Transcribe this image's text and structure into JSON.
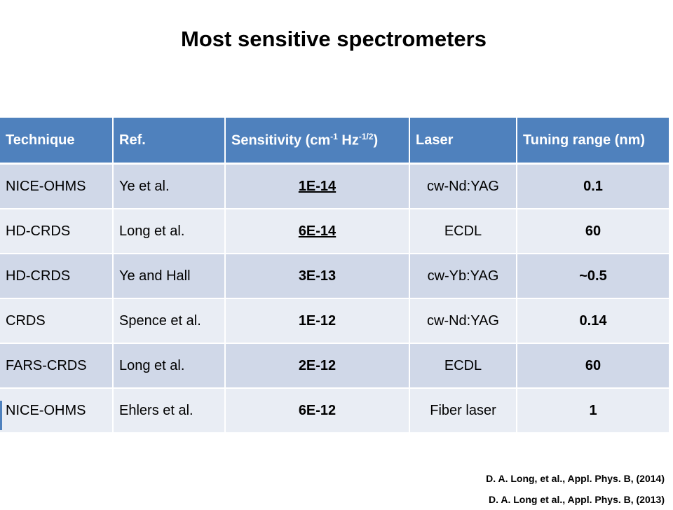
{
  "slide": {
    "title": "Most sensitive spectrometers"
  },
  "table": {
    "headers": {
      "technique": "Technique",
      "ref": "Ref.",
      "sensitivity_pre": "Sensitivity (cm",
      "sensitivity_sup1": "-1",
      "sensitivity_mid": " Hz",
      "sensitivity_sup2": "-1/2",
      "sensitivity_post": ")",
      "laser": "Laser",
      "tuning": "Tuning range (nm)"
    },
    "rows": [
      {
        "technique": "NICE-OHMS",
        "ref": "Ye et al.",
        "sensitivity": "1E-14",
        "laser": "cw-Nd:YAG",
        "tuning": "0.1"
      },
      {
        "technique": "HD-CRDS",
        "ref": "Long et al.",
        "sensitivity": "6E-14",
        "laser": "ECDL",
        "tuning": "60"
      },
      {
        "technique": "HD-CRDS",
        "ref": "Ye and Hall",
        "sensitivity": "3E-13",
        "laser": "cw-Yb:YAG",
        "tuning": "~0.5"
      },
      {
        "technique": "CRDS",
        "ref": "Spence et al.",
        "sensitivity": "1E-12",
        "laser": "cw-Nd:YAG",
        "tuning": "0.14"
      },
      {
        "technique": "FARS-CRDS",
        "ref": "Long et al.",
        "sensitivity": "2E-12",
        "laser": "ECDL",
        "tuning": "60"
      },
      {
        "technique": "NICE-OHMS",
        "ref": "Ehlers et al.",
        "sensitivity": "6E-12",
        "laser": "Fiber laser",
        "tuning": "1"
      }
    ]
  },
  "references": [
    "D. A. Long, et al., Appl. Phys. B, (2014)",
    "D. A. Long et al., Appl. Phys. B, (2013)"
  ],
  "colors": {
    "header_bg": "#4f81bd",
    "row_odd": "#d0d8e8",
    "row_even": "#e9edf4"
  }
}
